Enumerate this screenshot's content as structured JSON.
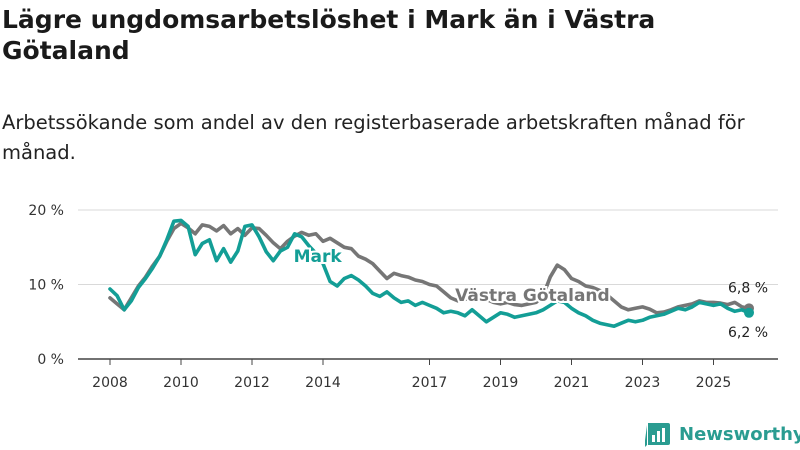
{
  "title": "Lägre ungdomsarbetslöshet i Mark än i Västra Götaland",
  "subtitle": "Arbetssökande som andel av den registerbaserade arbetskraften månad för månad.",
  "brand": "Newsworthy",
  "colors": {
    "mark": "#139e96",
    "vg": "#767676",
    "grid": "#d9d9d9"
  },
  "chart_data": {
    "type": "line",
    "title": "Lägre ungdomsarbetslöshet i Mark än i Västra Götaland",
    "xlabel": "",
    "ylabel": "",
    "ylim": [
      0,
      20
    ],
    "xlim": [
      2008.0,
      2026.1
    ],
    "y_ticks": [
      0,
      10,
      20
    ],
    "y_tick_labels": [
      "0 %",
      "10 %",
      "20 %"
    ],
    "x_ticks": [
      2008,
      2010,
      2012,
      2014,
      2017,
      2019,
      2021,
      2023,
      2025
    ],
    "x_tick_labels": [
      "2008",
      "2010",
      "2012",
      "2014",
      "2017",
      "2019",
      "2021",
      "2023",
      "2025"
    ],
    "series": [
      {
        "name": "Västra Götaland",
        "color": "#767676",
        "end_label": "6,8 %",
        "points": [
          [
            2008.0,
            8.2
          ],
          [
            2008.2,
            7.4
          ],
          [
            2008.4,
            6.6
          ],
          [
            2008.6,
            8.2
          ],
          [
            2008.8,
            9.8
          ],
          [
            2009.0,
            11.0
          ],
          [
            2009.2,
            12.5
          ],
          [
            2009.4,
            13.8
          ],
          [
            2009.6,
            15.8
          ],
          [
            2009.8,
            17.5
          ],
          [
            2010.0,
            18.2
          ],
          [
            2010.2,
            17.6
          ],
          [
            2010.4,
            16.8
          ],
          [
            2010.6,
            18.0
          ],
          [
            2010.8,
            17.8
          ],
          [
            2011.0,
            17.2
          ],
          [
            2011.2,
            17.9
          ],
          [
            2011.4,
            16.8
          ],
          [
            2011.6,
            17.5
          ],
          [
            2011.8,
            16.6
          ],
          [
            2012.0,
            17.6
          ],
          [
            2012.2,
            17.5
          ],
          [
            2012.4,
            16.6
          ],
          [
            2012.6,
            15.6
          ],
          [
            2012.8,
            14.8
          ],
          [
            2013.0,
            15.8
          ],
          [
            2013.2,
            16.5
          ],
          [
            2013.4,
            17.0
          ],
          [
            2013.6,
            16.6
          ],
          [
            2013.8,
            16.8
          ],
          [
            2014.0,
            15.8
          ],
          [
            2014.2,
            16.2
          ],
          [
            2014.4,
            15.6
          ],
          [
            2014.6,
            15.0
          ],
          [
            2014.8,
            14.8
          ],
          [
            2015.0,
            13.8
          ],
          [
            2015.2,
            13.4
          ],
          [
            2015.4,
            12.8
          ],
          [
            2015.6,
            11.8
          ],
          [
            2015.8,
            10.8
          ],
          [
            2016.0,
            11.5
          ],
          [
            2016.2,
            11.2
          ],
          [
            2016.4,
            11.0
          ],
          [
            2016.6,
            10.6
          ],
          [
            2016.8,
            10.4
          ],
          [
            2017.0,
            10.0
          ],
          [
            2017.2,
            9.8
          ],
          [
            2017.4,
            9.0
          ],
          [
            2017.6,
            8.2
          ],
          [
            2017.8,
            7.8
          ],
          [
            2018.0,
            8.0
          ],
          [
            2018.2,
            8.2
          ],
          [
            2018.4,
            8.6
          ],
          [
            2018.6,
            8.0
          ],
          [
            2018.8,
            7.6
          ],
          [
            2019.0,
            7.4
          ],
          [
            2019.2,
            7.6
          ],
          [
            2019.4,
            7.3
          ],
          [
            2019.6,
            7.2
          ],
          [
            2019.8,
            7.4
          ],
          [
            2020.0,
            7.6
          ],
          [
            2020.2,
            8.5
          ],
          [
            2020.4,
            11.0
          ],
          [
            2020.6,
            12.6
          ],
          [
            2020.8,
            12.0
          ],
          [
            2021.0,
            10.8
          ],
          [
            2021.2,
            10.4
          ],
          [
            2021.4,
            9.8
          ],
          [
            2021.6,
            9.6
          ],
          [
            2021.8,
            9.2
          ],
          [
            2022.0,
            8.6
          ],
          [
            2022.2,
            7.8
          ],
          [
            2022.4,
            7.0
          ],
          [
            2022.6,
            6.6
          ],
          [
            2022.8,
            6.8
          ],
          [
            2023.0,
            7.0
          ],
          [
            2023.2,
            6.7
          ],
          [
            2023.4,
            6.2
          ],
          [
            2023.6,
            6.3
          ],
          [
            2023.8,
            6.6
          ],
          [
            2024.0,
            7.0
          ],
          [
            2024.2,
            7.2
          ],
          [
            2024.4,
            7.4
          ],
          [
            2024.6,
            7.8
          ],
          [
            2024.8,
            7.6
          ],
          [
            2025.0,
            7.6
          ],
          [
            2025.2,
            7.5
          ],
          [
            2025.4,
            7.3
          ],
          [
            2025.6,
            7.6
          ],
          [
            2025.8,
            7.0
          ],
          [
            2026.0,
            6.8
          ]
        ]
      },
      {
        "name": "Mark",
        "color": "#139e96",
        "end_label": "6,2 %",
        "points": [
          [
            2008.0,
            9.4
          ],
          [
            2008.2,
            8.5
          ],
          [
            2008.4,
            6.6
          ],
          [
            2008.6,
            7.8
          ],
          [
            2008.8,
            9.6
          ],
          [
            2009.0,
            10.8
          ],
          [
            2009.2,
            12.2
          ],
          [
            2009.4,
            13.8
          ],
          [
            2009.6,
            16.0
          ],
          [
            2009.8,
            18.5
          ],
          [
            2010.0,
            18.6
          ],
          [
            2010.2,
            17.8
          ],
          [
            2010.4,
            14.0
          ],
          [
            2010.6,
            15.5
          ],
          [
            2010.8,
            16.0
          ],
          [
            2011.0,
            13.2
          ],
          [
            2011.2,
            14.8
          ],
          [
            2011.4,
            13.0
          ],
          [
            2011.6,
            14.5
          ],
          [
            2011.8,
            17.8
          ],
          [
            2012.0,
            18.0
          ],
          [
            2012.2,
            16.4
          ],
          [
            2012.4,
            14.4
          ],
          [
            2012.6,
            13.2
          ],
          [
            2012.8,
            14.5
          ],
          [
            2013.0,
            15.0
          ],
          [
            2013.2,
            16.8
          ],
          [
            2013.4,
            16.4
          ],
          [
            2013.6,
            15.2
          ],
          [
            2013.8,
            14.2
          ],
          [
            2014.0,
            12.8
          ],
          [
            2014.2,
            10.4
          ],
          [
            2014.4,
            9.8
          ],
          [
            2014.6,
            10.8
          ],
          [
            2014.8,
            11.2
          ],
          [
            2015.0,
            10.6
          ],
          [
            2015.2,
            9.8
          ],
          [
            2015.4,
            8.8
          ],
          [
            2015.6,
            8.4
          ],
          [
            2015.8,
            9.0
          ],
          [
            2016.0,
            8.2
          ],
          [
            2016.2,
            7.6
          ],
          [
            2016.4,
            7.8
          ],
          [
            2016.6,
            7.2
          ],
          [
            2016.8,
            7.6
          ],
          [
            2017.0,
            7.2
          ],
          [
            2017.2,
            6.8
          ],
          [
            2017.4,
            6.2
          ],
          [
            2017.6,
            6.4
          ],
          [
            2017.8,
            6.2
          ],
          [
            2018.0,
            5.8
          ],
          [
            2018.2,
            6.6
          ],
          [
            2018.4,
            5.8
          ],
          [
            2018.6,
            5.0
          ],
          [
            2018.8,
            5.6
          ],
          [
            2019.0,
            6.2
          ],
          [
            2019.2,
            6.0
          ],
          [
            2019.4,
            5.6
          ],
          [
            2019.6,
            5.8
          ],
          [
            2019.8,
            6.0
          ],
          [
            2020.0,
            6.2
          ],
          [
            2020.2,
            6.6
          ],
          [
            2020.4,
            7.2
          ],
          [
            2020.6,
            7.8
          ],
          [
            2020.8,
            7.6
          ],
          [
            2021.0,
            6.8
          ],
          [
            2021.2,
            6.2
          ],
          [
            2021.4,
            5.8
          ],
          [
            2021.6,
            5.2
          ],
          [
            2021.8,
            4.8
          ],
          [
            2022.0,
            4.6
          ],
          [
            2022.2,
            4.4
          ],
          [
            2022.4,
            4.8
          ],
          [
            2022.6,
            5.2
          ],
          [
            2022.8,
            5.0
          ],
          [
            2023.0,
            5.2
          ],
          [
            2023.2,
            5.6
          ],
          [
            2023.4,
            5.8
          ],
          [
            2023.6,
            6.0
          ],
          [
            2023.8,
            6.4
          ],
          [
            2024.0,
            6.8
          ],
          [
            2024.2,
            6.6
          ],
          [
            2024.4,
            7.0
          ],
          [
            2024.6,
            7.6
          ],
          [
            2024.8,
            7.4
          ],
          [
            2025.0,
            7.2
          ],
          [
            2025.2,
            7.4
          ],
          [
            2025.4,
            6.8
          ],
          [
            2025.6,
            6.4
          ],
          [
            2025.8,
            6.6
          ],
          [
            2026.0,
            6.2
          ]
        ]
      }
    ],
    "annotations": [
      {
        "text": "Mark",
        "series": "Mark"
      },
      {
        "text": "Västra Götaland",
        "series": "Västra Götaland"
      }
    ]
  }
}
